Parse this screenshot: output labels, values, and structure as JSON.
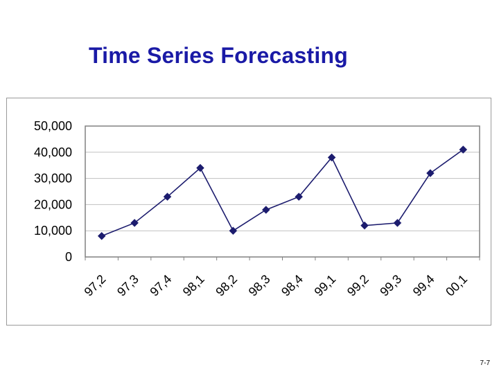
{
  "slide": {
    "title": "Time Series Forecasting",
    "page_number": "7-7"
  },
  "colors": {
    "title": "#1a1aa6",
    "series": "#1c1c6e",
    "plot_border": "#808080",
    "gridline": "#c0c0c0"
  },
  "chart_data": {
    "type": "line",
    "title": "",
    "xlabel": "",
    "ylabel": "",
    "categories": [
      "97,2",
      "97,3",
      "97,4",
      "98,1",
      "98,2",
      "98,3",
      "98,4",
      "99,1",
      "99,2",
      "99,3",
      "99,4",
      "00,1"
    ],
    "series": [
      {
        "values": [
          8000,
          13000,
          23000,
          34000,
          10000,
          18000,
          23000,
          38000,
          12000,
          13000,
          32000,
          41000
        ],
        "marker": "diamond"
      }
    ],
    "ylim": [
      0,
      50000
    ],
    "yticks": [
      0,
      10000,
      20000,
      30000,
      40000,
      50000
    ],
    "ytick_labels": [
      "0",
      "10,000",
      "20,000",
      "30,000",
      "40,000",
      "50,000"
    ],
    "grid": "horizontal",
    "legend": "none"
  }
}
